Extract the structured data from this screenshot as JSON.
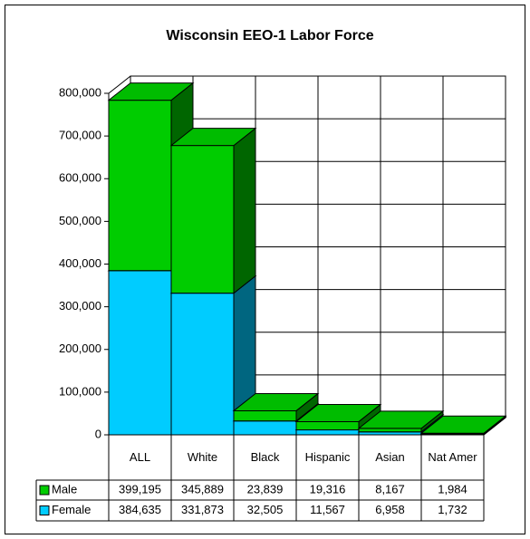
{
  "chart_data": {
    "type": "bar",
    "stacked": true,
    "three_d": true,
    "title": "Wisconsin EEO-1 Labor Force",
    "categories": [
      "ALL",
      "White",
      "Black",
      "Hispanic",
      "Asian",
      "Nat Amer"
    ],
    "series": [
      {
        "name": "Female",
        "color": "#00ccff",
        "values": [
          384635,
          331873,
          32505,
          11567,
          6958,
          1732
        ],
        "value_labels": [
          "384,635",
          "331,873",
          "32,505",
          "11,567",
          "6,958",
          "1,732"
        ]
      },
      {
        "name": "Male",
        "color": "#00cc00",
        "values": [
          399195,
          345889,
          23839,
          19316,
          8167,
          1984
        ],
        "value_labels": [
          "399,195",
          "345,889",
          "23,839",
          "19,316",
          "8,167",
          "1,984"
        ]
      }
    ],
    "ylim": [
      0,
      800000
    ],
    "yticks": [
      0,
      {
        "value": 100000,
        "label": "100,000"
      },
      {
        "value": 200000,
        "label": "200,000"
      },
      {
        "value": 300000,
        "label": "300,000"
      },
      {
        "value": 400000,
        "label": "400,000"
      },
      {
        "value": 500000,
        "label": "500,000"
      },
      {
        "value": 600000,
        "label": "600,000"
      },
      {
        "value": 700000,
        "label": "700,000"
      },
      {
        "value": 800000,
        "label": "800,000"
      }
    ],
    "grid": true
  }
}
